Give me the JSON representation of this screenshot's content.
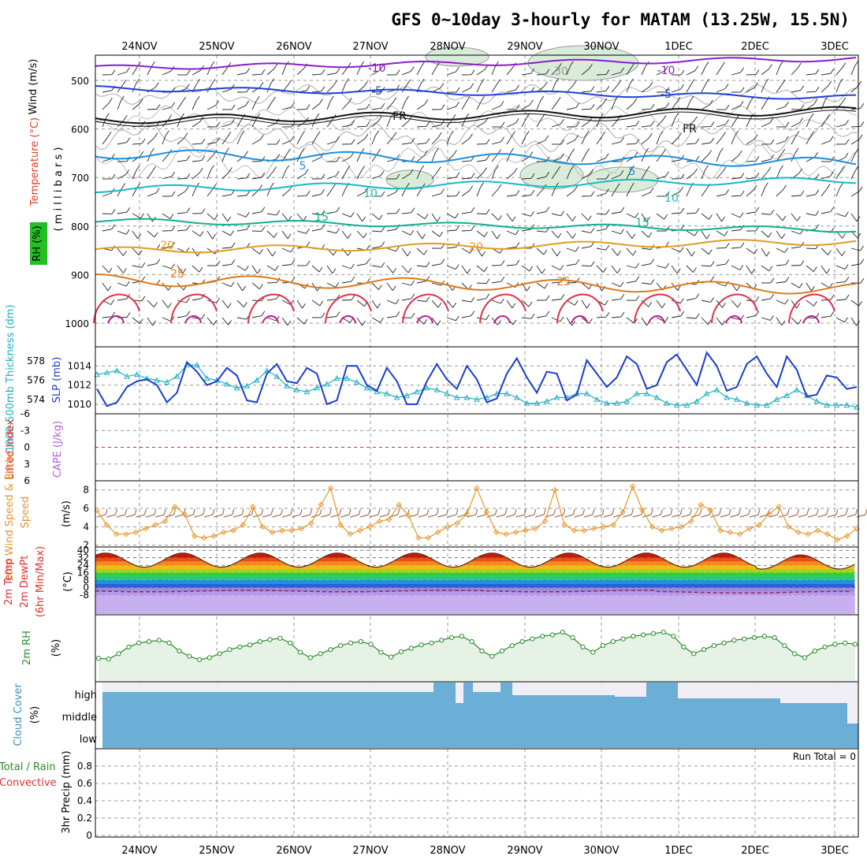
{
  "title": "GFS 0~10day 3-hourly for MATAM (13.25W, 15.5N)",
  "dates": [
    "24NOV",
    "25NOV",
    "26NOV",
    "27NOV",
    "28NOV",
    "29NOV",
    "30NOV",
    "1DEC",
    "2DEC",
    "3DEC"
  ],
  "run_total": "Run Total = 0",
  "colors": {
    "temp_label": "#e04020",
    "wind_label": "#000000",
    "rh_badge": "#22c022",
    "slp": "#1a3fcc",
    "thickness": "#20b0c0",
    "wind10": "#e8962a",
    "barb10": "#8b5a3c",
    "cloud": "#6baed6",
    "rh2m": "#2a8a2a",
    "li": "#e03030",
    "cape": "#b060e0"
  },
  "panels": {
    "upper": {
      "ylabel_wind": "Wind (m/s)",
      "ylabel_temp": "Temperature (°C)",
      "ylabel_units": "( m i l l i b a r s )",
      "rh_badge": "RH (%)",
      "ticks": [
        "500",
        "600",
        "700",
        "800",
        "900",
        "1000"
      ],
      "isotherm_labels": [
        "-10",
        "-10",
        "-5",
        "-5",
        "FR",
        "FR",
        "5",
        "5",
        "10",
        "10",
        "15",
        "15",
        "20",
        "20",
        "25",
        "25",
        "30"
      ]
    },
    "slp": {
      "ylabel_left": "1000-500mb Thickness (dm)",
      "ylabel_right": "SLP (mb)",
      "left_ticks": [
        "578",
        "576",
        "574"
      ],
      "right_ticks": [
        "1014",
        "1012",
        "1010"
      ]
    },
    "li": {
      "ylabel_left": "Lifted Index",
      "ylabel_right": "CAPE (J/kg)",
      "ticks": [
        "-6",
        "-3",
        "0",
        "3",
        "6"
      ]
    },
    "wind": {
      "ylabel": "10m Wind Speed & Barbs",
      "ylabel_speed": "Speed",
      "ylabel_units": "(m/s)",
      "ticks": [
        "8",
        "6",
        "4",
        "2"
      ]
    },
    "temp": {
      "ylabel_a": "2m Temp",
      "ylabel_b": "2m DewPt",
      "ylabel_c": "(6hr Min/Max)",
      "ylabel_units": "(°C)",
      "ticks": [
        "40",
        "32",
        "24",
        "16",
        "8",
        "0",
        "-8"
      ]
    },
    "rh": {
      "ylabel": "2m RH",
      "ylabel_units": "(%)"
    },
    "cloud": {
      "ylabel": "Cloud Cover",
      "ylabel_units": "(%)",
      "levels": [
        "high",
        "middle",
        "low"
      ]
    },
    "precip": {
      "ylabel_a": "Total / Rain",
      "ylabel_b": "Convective",
      "ylabel_c": "3hr Precip (mm)",
      "ticks": [
        "0.8",
        "0.6",
        "0.4",
        "0.2",
        "0"
      ]
    }
  },
  "chart_data": [
    {
      "type": "line",
      "name": "slp",
      "title": "",
      "x": [
        0,
        0.125,
        0.25,
        0.375,
        0.5,
        0.625,
        0.75,
        0.875,
        1,
        1.125,
        1.25,
        1.375,
        1.5,
        1.625,
        1.75,
        1.875,
        2,
        2.125,
        2.25,
        2.375,
        2.5,
        2.625,
        2.75,
        2.875,
        3,
        3.125,
        3.25,
        3.375,
        3.5,
        3.625,
        3.75,
        3.875,
        4,
        4.125,
        4.25,
        4.375,
        4.5,
        4.625,
        4.75,
        4.875,
        5,
        5.125,
        5.25,
        5.375,
        5.5,
        5.625,
        5.75,
        5.875,
        6,
        6.125,
        6.25,
        6.375,
        6.5,
        6.625,
        6.75,
        6.875,
        7,
        7.125,
        7.25,
        7.375,
        7.5,
        7.625,
        7.75,
        7.875,
        8,
        8.125,
        8.25,
        8.375,
        8.5,
        8.625,
        8.75,
        8.875,
        9,
        9.125,
        9.25,
        9.375,
        9.5
      ],
      "series": [
        {
          "name": "SLP (mb)",
          "values": [
            1011.6,
            1009.8,
            1010.2,
            1011.8,
            1012.4,
            1012.6,
            1012.0,
            1010.2,
            1011.2,
            1014.4,
            1013.4,
            1012.0,
            1012.4,
            1013.8,
            1013.0,
            1010.4,
            1010.2,
            1013.2,
            1014.2,
            1012.4,
            1012.2,
            1013.8,
            1013.2,
            1010.0,
            1010.4,
            1014.0,
            1014.0,
            1012.0,
            1011.4,
            1013.8,
            1012.4,
            1010.0,
            1010.0,
            1012.4,
            1014.2,
            1012.6,
            1011.6,
            1014.0,
            1012.6,
            1010.2,
            1010.6,
            1013.2,
            1014.8,
            1012.8,
            1011.2,
            1013.4,
            1013.2,
            1010.4,
            1011.0,
            1014.6,
            1013.2,
            1011.8,
            1012.8,
            1015.0,
            1014.2,
            1011.6,
            1012.0,
            1014.4,
            1015.2,
            1013.6,
            1012.0,
            1015.4,
            1014.0,
            1011.4,
            1011.8,
            1014.2,
            1015.0,
            1013.2,
            1011.8,
            1015.0,
            1013.6,
            1010.8,
            1011.0,
            1013.0,
            1012.8,
            1011.6,
            1011.8
          ]
        },
        {
          "name": "1000-500mb Thickness (dm)",
          "values": [
            576.6,
            576.8,
            577.0,
            576.4,
            576.6,
            576.2,
            576.0,
            575.8,
            576.4,
            577.6,
            577.6,
            576.2,
            576.0,
            575.6,
            575.2,
            575.4,
            576.0,
            577.0,
            576.4,
            575.4,
            575.0,
            574.8,
            575.2,
            575.6,
            576.2,
            576.2,
            575.8,
            575.2,
            574.8,
            574.6,
            574.2,
            574.4,
            574.8,
            575.2,
            575.0,
            574.6,
            574.2,
            574.2,
            574.0,
            574.2,
            574.6,
            574.6,
            574.2,
            573.6,
            573.6,
            573.8,
            574.2,
            574.2,
            574.6,
            574.6,
            574.0,
            573.6,
            573.6,
            573.8,
            574.6,
            574.6,
            574.2,
            573.6,
            573.4,
            573.4,
            573.8,
            574.6,
            575.0,
            574.2,
            574.0,
            573.6,
            573.4,
            573.4,
            574.0,
            574.4,
            575.0,
            574.4,
            573.8,
            573.4,
            573.4,
            573.4,
            573.2
          ]
        }
      ],
      "ylim": [
        1009,
        1016
      ]
    },
    {
      "type": "line",
      "name": "wind10m",
      "title": "",
      "series": [
        {
          "name": "10m Wind Speed",
          "values": [
            5.8,
            4.2,
            3.2,
            3.2,
            3.4,
            3.8,
            4.2,
            4.6,
            6.2,
            5.4,
            3.0,
            2.8,
            3.0,
            3.4,
            3.6,
            4.2,
            6.2,
            4.0,
            3.4,
            3.6,
            3.6,
            3.8,
            4.4,
            6.4,
            8.2,
            4.2,
            3.2,
            3.6,
            4.0,
            4.6,
            4.8,
            6.4,
            5.2,
            2.8,
            2.8,
            3.4,
            4.0,
            4.4,
            5.4,
            8.2,
            5.6,
            3.4,
            3.2,
            3.4,
            3.6,
            3.8,
            4.6,
            8.0,
            4.2,
            3.6,
            3.6,
            3.8,
            4.0,
            4.2,
            5.6,
            8.4,
            5.8,
            4.0,
            3.6,
            3.8,
            4.0,
            4.6,
            6.4,
            5.8,
            3.6,
            3.4,
            3.2,
            3.8,
            4.2,
            5.4,
            6.2,
            4.0,
            3.4,
            3.2,
            3.6,
            3.2,
            2.6,
            3.0,
            3.8
          ]
        }
      ],
      "ylim": [
        2,
        8.5
      ]
    },
    {
      "type": "line",
      "name": "rh2m",
      "title": "",
      "series": [
        {
          "name": "2m RH",
          "values": [
            35,
            34,
            42,
            52,
            58,
            60,
            62,
            58,
            46,
            38,
            33,
            36,
            42,
            48,
            52,
            55,
            60,
            63,
            65,
            58,
            44,
            36,
            42,
            48,
            54,
            58,
            60,
            56,
            44,
            37,
            45,
            50,
            55,
            58,
            62,
            66,
            68,
            60,
            46,
            38,
            46,
            54,
            60,
            64,
            68,
            70,
            74,
            66,
            52,
            44,
            54,
            60,
            64,
            68,
            70,
            72,
            74,
            68,
            52,
            42,
            48,
            54,
            58,
            62,
            64,
            66,
            68,
            66,
            54,
            42,
            36,
            46,
            52,
            56,
            58,
            56
          ]
        }
      ],
      "ylim": [
        0,
        100
      ]
    }
  ]
}
